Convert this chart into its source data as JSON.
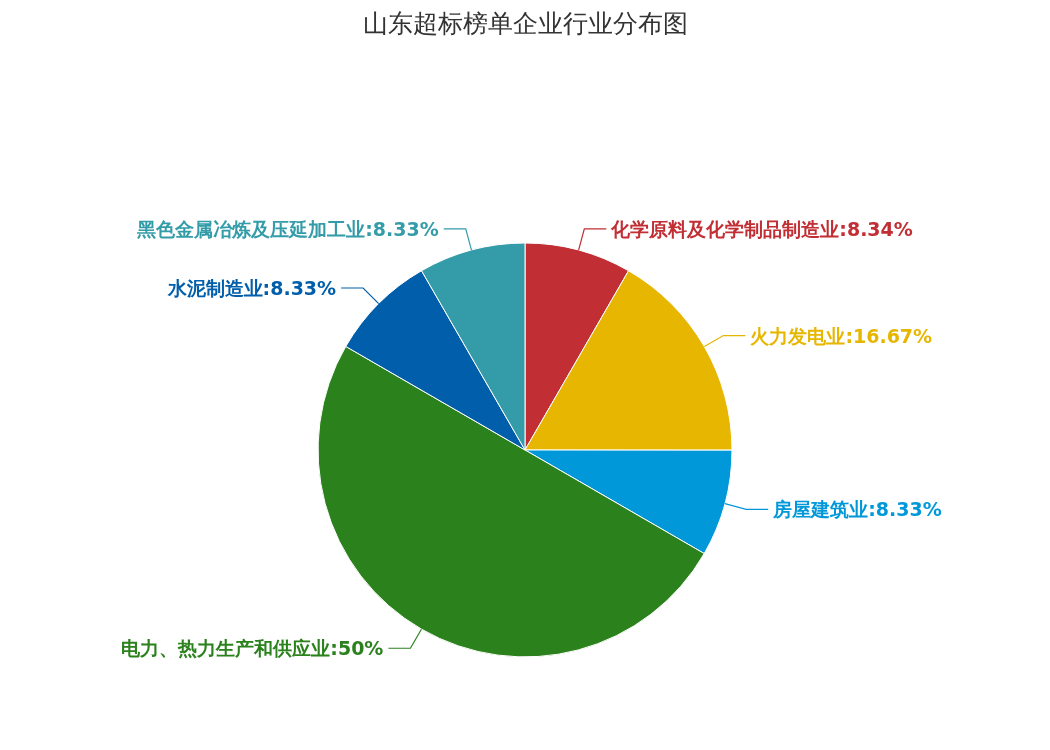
{
  "chart_data": {
    "type": "pie",
    "title": "山东超标榜单企业行业分布图",
    "categories": [
      "化学原料及化学制品制造业",
      "火力发电业",
      "房屋建筑业",
      "电力、热力生产和供应业",
      "水泥制造业",
      "黑色金属冶炼及压延加工业"
    ],
    "values": [
      8.34,
      16.67,
      8.33,
      50,
      8.33,
      8.33
    ],
    "value_labels": [
      "8.34%",
      "16.67%",
      "8.33%",
      "50%",
      "8.33%",
      "8.33%"
    ],
    "colors": [
      "#c12e34",
      "#e6b600",
      "#0098d9",
      "#2b821d",
      "#005eaa",
      "#339ca8"
    ],
    "legend": false
  }
}
